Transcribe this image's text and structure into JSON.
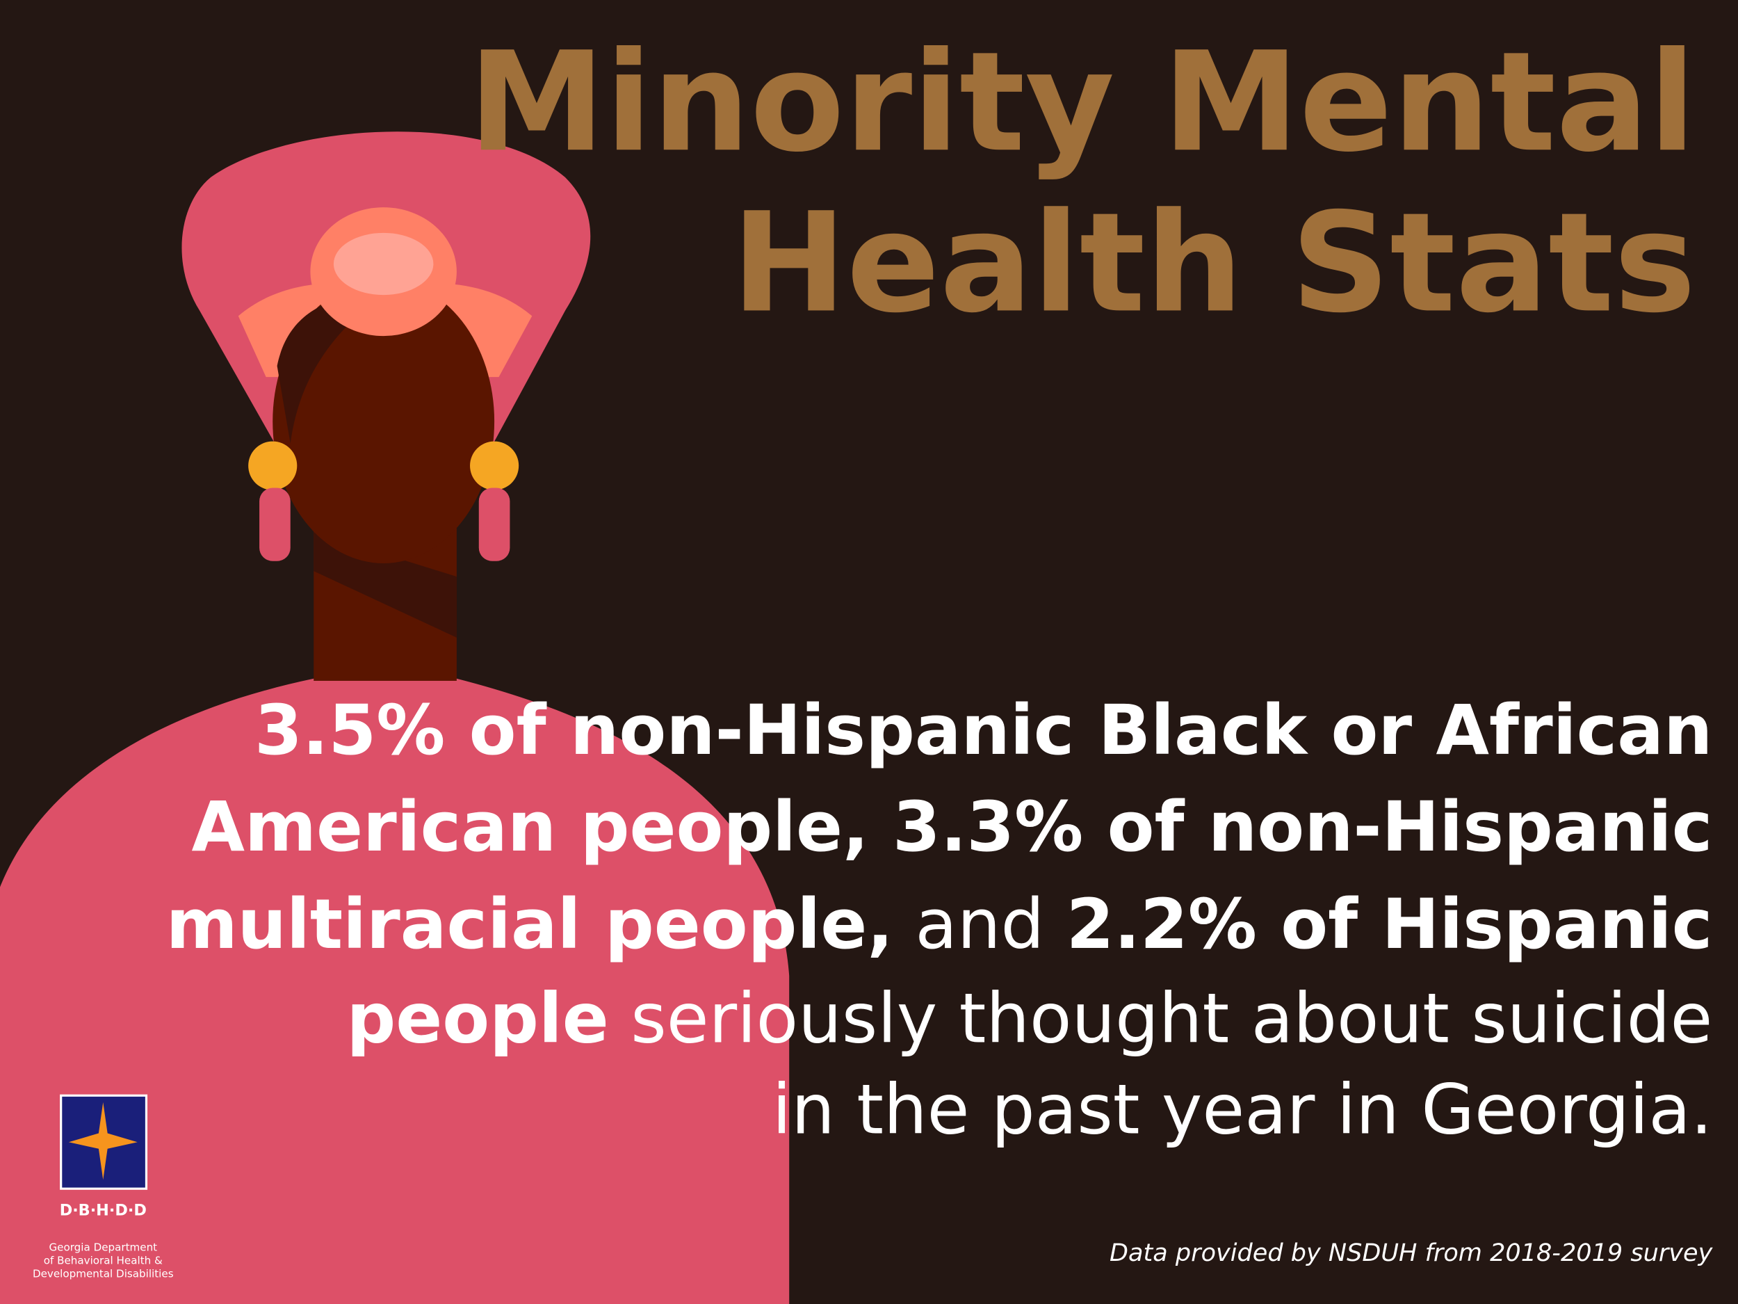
{
  "title": {
    "lines": [
      "Minority Mental",
      "Health Stats"
    ]
  },
  "body": {
    "lines": [
      [
        {
          "text": "3.5% of non-Hispanic Black or African",
          "bold": true
        }
      ],
      [
        {
          "text": "American people, 3.3% of non-Hispanic",
          "bold": true
        }
      ],
      [
        {
          "text": "multiracial people,",
          "bold": true
        },
        {
          "text": " and ",
          "bold": false
        },
        {
          "text": "2.2% of Hispanic",
          "bold": true
        }
      ],
      [
        {
          "text": "people",
          "bold": true
        },
        {
          "text": " seriously thought about suicide",
          "bold": false
        }
      ],
      [
        {
          "text": "in the past year in Georgia.",
          "bold": false
        }
      ]
    ]
  },
  "logo": {
    "acronym": "D·B·H·D·D",
    "name_lines": [
      "Georgia Department",
      "of Behavioral Health &",
      "Developmental Disabilities"
    ]
  },
  "source": "Data provided by NSDUH from 2018-2019 survey"
}
